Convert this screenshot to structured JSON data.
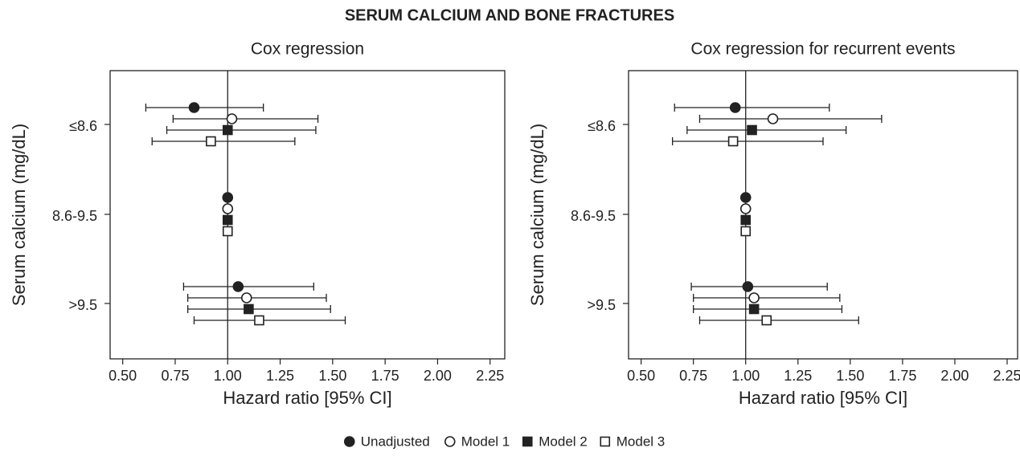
{
  "title": "SERUM CALCIUM AND BONE FRACTURES",
  "chart_data": [
    {
      "type": "forest",
      "subtitle": "Cox regression",
      "xlabel": "Hazard ratio [95% CI]",
      "ylabel": "Serum calcium (mg/dL)",
      "categories": [
        "≤8.6",
        "8.6-9.5",
        ">9.5"
      ],
      "xlim": [
        0.44,
        2.32
      ],
      "xticks": [
        {
          "value": 0.5,
          "label": "0.50"
        },
        {
          "value": 0.75,
          "label": "0.75"
        },
        {
          "value": 1,
          "label": "1.00"
        },
        {
          "value": 1.25,
          "label": "1.25"
        },
        {
          "value": 1.5,
          "label": "1.50"
        },
        {
          "value": 1.75,
          "label": "1.75"
        },
        {
          "value": 2,
          "label": "2.00"
        },
        {
          "value": 2.25,
          "label": "2.25"
        }
      ],
      "reference_line": 1,
      "series": [
        {
          "name": "Unadjusted",
          "marker": "circle-filled",
          "color": "#222222",
          "values": [
            0.84,
            1,
            1.05
          ],
          "lower": [
            0.61,
            null,
            0.79
          ],
          "upper": [
            1.17,
            null,
            1.41
          ]
        },
        {
          "name": "Model 1",
          "marker": "circle-open",
          "color": "#222222",
          "values": [
            1.02,
            1,
            1.09
          ],
          "lower": [
            0.74,
            null,
            0.81
          ],
          "upper": [
            1.43,
            null,
            1.47
          ]
        },
        {
          "name": "Model 2",
          "marker": "square-filled",
          "color": "#222222",
          "values": [
            1.0,
            1,
            1.1
          ],
          "lower": [
            0.71,
            null,
            0.81
          ],
          "upper": [
            1.42,
            null,
            1.49
          ]
        },
        {
          "name": "Model 3",
          "marker": "square-open",
          "color": "#222222",
          "values": [
            0.92,
            1,
            1.15
          ],
          "lower": [
            0.64,
            null,
            0.84
          ],
          "upper": [
            1.32,
            null,
            1.56
          ]
        }
      ]
    },
    {
      "type": "forest",
      "subtitle": "Cox regression for recurrent events",
      "xlabel": "Hazard ratio [95% CI]",
      "ylabel": "Serum calcium (mg/dL)",
      "categories": [
        "≤8.6",
        "8.6-9.5",
        ">9.5"
      ],
      "xlim": [
        0.44,
        2.3
      ],
      "xticks": [
        {
          "value": 0.5,
          "label": "0.50"
        },
        {
          "value": 0.75,
          "label": "0.75"
        },
        {
          "value": 1,
          "label": "1.00"
        },
        {
          "value": 1.25,
          "label": "1.25"
        },
        {
          "value": 1.5,
          "label": "1.50"
        },
        {
          "value": 1.75,
          "label": "1.75"
        },
        {
          "value": 2,
          "label": "2.00"
        },
        {
          "value": 2.25,
          "label": "2.25"
        }
      ],
      "reference_line": 1,
      "series": [
        {
          "name": "Unadjusted",
          "marker": "circle-filled",
          "color": "#222222",
          "values": [
            0.95,
            1,
            1.01
          ],
          "lower": [
            0.66,
            null,
            0.74
          ],
          "upper": [
            1.4,
            null,
            1.39
          ]
        },
        {
          "name": "Model 1",
          "marker": "circle-open",
          "color": "#222222",
          "values": [
            1.13,
            1,
            1.04
          ],
          "lower": [
            0.78,
            null,
            0.75
          ],
          "upper": [
            1.65,
            null,
            1.45
          ]
        },
        {
          "name": "Model 2",
          "marker": "square-filled",
          "color": "#222222",
          "values": [
            1.03,
            1,
            1.04
          ],
          "lower": [
            0.72,
            null,
            0.75
          ],
          "upper": [
            1.48,
            null,
            1.46
          ]
        },
        {
          "name": "Model 3",
          "marker": "square-open",
          "color": "#222222",
          "values": [
            0.94,
            1,
            1.1
          ],
          "lower": [
            0.65,
            null,
            0.78
          ],
          "upper": [
            1.37,
            null,
            1.54
          ]
        }
      ]
    }
  ]
}
